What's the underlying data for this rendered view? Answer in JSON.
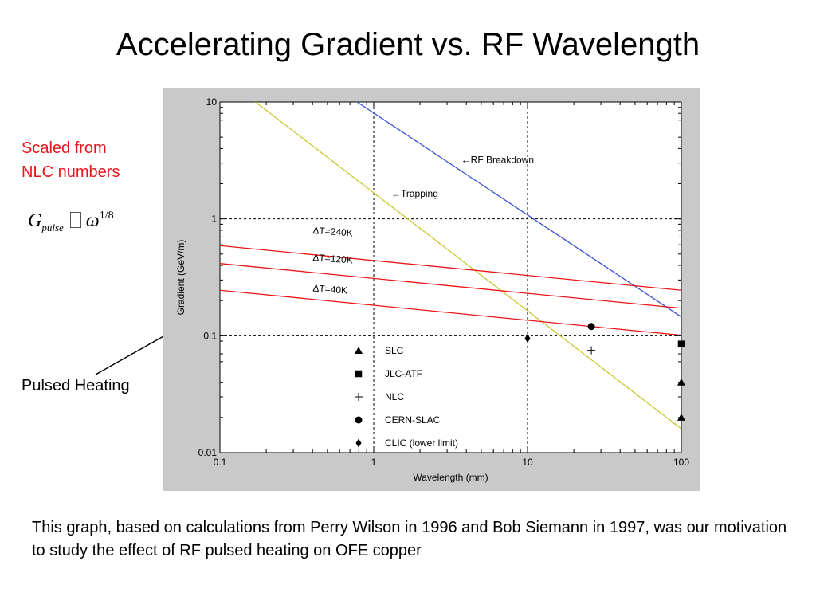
{
  "slide": {
    "title": "Accelerating Gradient vs. RF Wavelength",
    "note_line1": "Scaled from",
    "note_line2": "NLC numbers",
    "formula": {
      "symbol": "G",
      "subscript": "pulse",
      "variable": "ω",
      "exponent": "1/8"
    },
    "pulsed_heating_label": "Pulsed Heating",
    "caption": "This graph, based on calculations from Perry Wilson in 1996 and Bob Siemann in 1997, was our motivation to study the effect of RF pulsed heating on OFE copper"
  },
  "chart_data": {
    "type": "line",
    "xlabel": "Wavelength (mm)",
    "ylabel": "Gradient (GeV/m)",
    "xscale": "log",
    "yscale": "log",
    "xlim": [
      0.1,
      100
    ],
    "ylim": [
      0.01,
      10
    ],
    "x_ticks": [
      "0.1",
      "1",
      "10",
      "100"
    ],
    "y_ticks": [
      "0.01",
      "0.1",
      "1",
      "10"
    ],
    "grid": "dashed lines at decades",
    "colors": {
      "breakdown": "#3a50d6",
      "trapping": "#c9c832",
      "heating": "#e8161b",
      "axis": "#000000",
      "panel": "#c9c9c9"
    },
    "lines": [
      {
        "name": "RF Breakdown",
        "label": "←RF Breakdown",
        "color": "#3a50d6",
        "points": [
          [
            0.78,
            10
          ],
          [
            100,
            0.145
          ]
        ],
        "label_at": [
          3.7,
          3.0
        ]
      },
      {
        "name": "Trapping",
        "label": "←Trapping",
        "color": "#c9c832",
        "points": [
          [
            0.17,
            10
          ],
          [
            100,
            0.016
          ]
        ],
        "label_at": [
          1.3,
          1.55
        ]
      },
      {
        "name": "ΔT=240K",
        "label": "ΔT=240K",
        "color": "#e8161b",
        "points": [
          [
            0.1,
            0.59
          ],
          [
            100,
            0.245
          ]
        ],
        "label_at": [
          0.4,
          0.75
        ]
      },
      {
        "name": "ΔT=120K",
        "label": "ΔT=120K",
        "color": "#e8161b",
        "points": [
          [
            0.1,
            0.415
          ],
          [
            100,
            0.172
          ]
        ],
        "label_at": [
          0.4,
          0.44
        ]
      },
      {
        "name": "ΔT=40K",
        "label": "ΔT=40K",
        "color": "#e8161b",
        "points": [
          [
            0.1,
            0.245
          ],
          [
            100,
            0.101
          ]
        ],
        "label_at": [
          0.4,
          0.24
        ]
      }
    ],
    "points": [
      {
        "series": "SLC",
        "marker": "triangle",
        "x": 100,
        "y": 0.04
      },
      {
        "series": "SLC",
        "marker": "triangle",
        "x": 100,
        "y": 0.02
      },
      {
        "series": "JLC-ATF",
        "marker": "square",
        "x": 100,
        "y": 0.085
      },
      {
        "series": "NLC",
        "marker": "plus",
        "x": 26,
        "y": 0.075
      },
      {
        "series": "CERN-SLAC",
        "marker": "circle",
        "x": 26,
        "y": 0.12
      },
      {
        "series": "CLIC (lower limit)",
        "marker": "diamond",
        "x": 10,
        "y": 0.095
      }
    ],
    "legend": {
      "position": "center-bottom",
      "items": [
        {
          "marker": "triangle",
          "label": "SLC"
        },
        {
          "marker": "square",
          "label": "JLC-ATF"
        },
        {
          "marker": "plus",
          "label": "NLC"
        },
        {
          "marker": "circle",
          "label": "CERN-SLAC"
        },
        {
          "marker": "diamond",
          "label": "CLIC (lower limit)"
        }
      ]
    }
  }
}
